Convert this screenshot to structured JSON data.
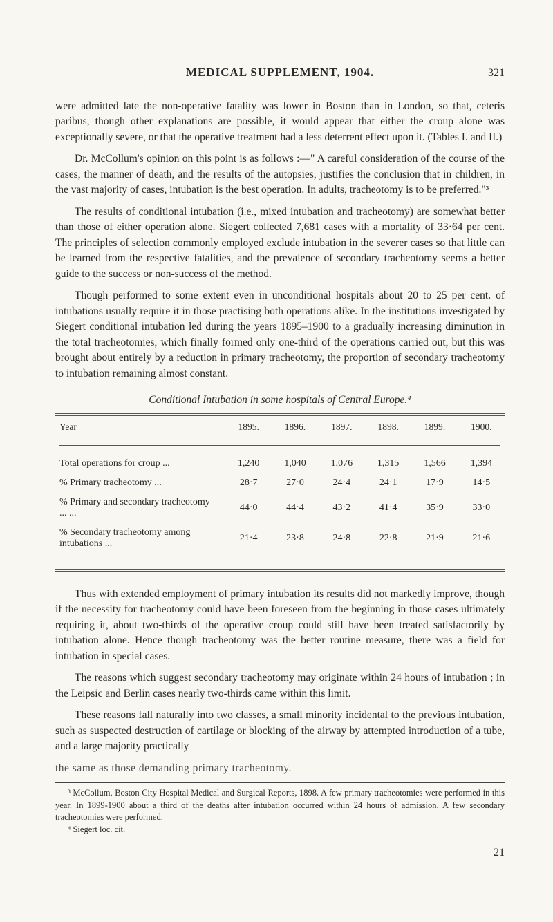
{
  "header": {
    "title": "MEDICAL SUPPLEMENT, 1904.",
    "page_number_top": "321"
  },
  "paragraphs": {
    "p1": "were admitted late the non-operative fatality was lower in Boston than in London, so that, ceteris paribus, though other explanations are possible, it would appear that either the croup alone was exceptionally severe, or that the operative treatment had a less deterrent effect upon it.  (Tables I. and II.)",
    "p2": "Dr. McCollum's opinion on this point is as follows :—\" A careful consideration of the course of the cases, the manner of death, and the results of the autopsies, justifies the conclusion that in children, in the vast majority of cases, intubation is the best operation.  In adults, tracheotomy is to be preferred.\"³",
    "p3": "The results of conditional intubation (i.e., mixed intubation and tracheotomy) are somewhat better than those of either operation alone.  Siegert collected 7,681 cases with a mortality of 33·64 per cent.  The principles of selection commonly employed exclude intubation in the severer cases so that little can be learned from the respective fatalities, and the prevalence of secondary tracheotomy seems a better guide to the success or non-success of the method.",
    "p4": "Though performed to some extent even in unconditional hospitals about 20 to 25 per cent. of intubations usually require it in those practising both operations alike.  In the institutions investigated by Siegert conditional intubation led during the years 1895–1900 to a gradually increasing diminution in the total tracheotomies, which finally formed only one-third of the operations carried out, but this was brought about entirely by a reduction in primary tracheotomy, the proportion of secondary tracheotomy to intubation remaining almost constant.",
    "p5": "Thus with extended employment of primary intubation its results did not markedly improve, though if the necessity for tracheotomy could have been foreseen from the beginning in those cases ultimately requiring it, about two-thirds of the operative croup could still have been treated satisfactorily by intubation alone. Hence though tracheotomy was the better routine measure, there was a field for intubation in special cases.",
    "p6": "The reasons which suggest secondary tracheotomy may originate within 24 hours of intubation ; in the Leipsic and Berlin cases nearly two-thirds came within this limit.",
    "p7": "These reasons fall naturally into two classes, a small minority incidental to the previous intubation, such as suspected destruction of cartilage or blocking of the airway by attempted introduction of a tube, and a large majority practically",
    "garbled": "the same as those demanding primary tracheotomy."
  },
  "table": {
    "caption": "Conditional Intubation in some hospitals of Central Europe.⁴",
    "columns": [
      "Year",
      "1895.",
      "1896.",
      "1897.",
      "1898.",
      "1899.",
      "1900."
    ],
    "rows": [
      {
        "label": "Total operations for croup ...",
        "cells": [
          "1,240",
          "1,040",
          "1,076",
          "1,315",
          "1,566",
          "1,394"
        ]
      },
      {
        "label": "% Primary tracheotomy    ...",
        "cells": [
          "28·7",
          "27·0",
          "24·4",
          "24·1",
          "17·9",
          "14·5"
        ]
      },
      {
        "label": "% Primary and secondary tracheotomy    ...   ...",
        "cells": [
          "44·0",
          "44·4",
          "43·2",
          "41·4",
          "35·9",
          "33·0"
        ]
      },
      {
        "label": "% Secondary tracheotomy among intubations    ...",
        "cells": [
          "21·4",
          "23·8",
          "24·8",
          "22·8",
          "21·9",
          "21·6"
        ]
      }
    ]
  },
  "footnotes": {
    "f3": "³ McCollum, Boston City Hospital Medical and Surgical Reports, 1898.  A few primary tracheotomies were performed in this year.  In 1899-1900 about a third of the deaths after intubation occurred within 24 hours of admission.  A few secondary tracheotomies were performed.",
    "f4": "⁴ Siegert  loc. cit."
  },
  "bottom_page": "21"
}
